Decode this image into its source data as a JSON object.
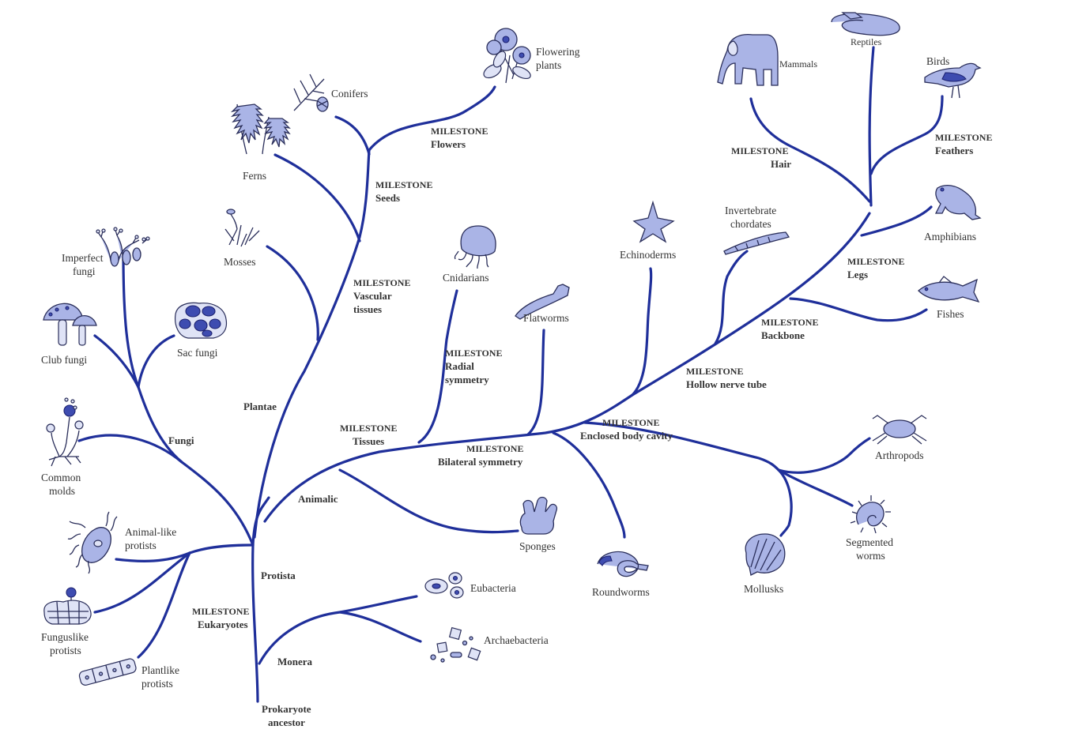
{
  "labels": {
    "flowering_plants": [
      "Flowering",
      "plants"
    ],
    "conifers": "Conifers",
    "ferns": "Ferns",
    "mosses": "Mosses",
    "imperfect_fungi": [
      "Imperfect",
      "fungi"
    ],
    "club_fungi": "Club fungi",
    "sac_fungi": "Sac fungi",
    "common_molds": [
      "Common",
      "molds"
    ],
    "animal_like_protists": [
      "Animal-like",
      "protists"
    ],
    "funguslike_protists": [
      "Funguslike",
      "protists"
    ],
    "plantlike_protists": [
      "Plantlike",
      "protists"
    ],
    "eubacteria": "Eubacteria",
    "archaebacteria": "Archaebacteria",
    "cnidarians": "Cnidarians",
    "flatworms": "Flatworms",
    "sponges": "Sponges",
    "roundworms": "Roundworms",
    "echinoderms": "Echinoderms",
    "invertebrate_chordates": [
      "Invertebrate",
      "chordates"
    ],
    "mammals": "Mammals",
    "reptiles": "Reptiles",
    "birds": "Birds",
    "amphibians": "Amphibians",
    "fishes": "Fishes",
    "arthropods": "Arthropods",
    "mollusks": "Mollusks",
    "segmented_worms": [
      "Segmented",
      "worms"
    ]
  },
  "groups": {
    "fungi": "Fungi",
    "plantae": "Plantae",
    "animalia": "Animalic",
    "protista": "Protista",
    "monera": "Monera",
    "ancestor": [
      "Prokaryote",
      "ancestor"
    ]
  },
  "milestones": {
    "flowers": [
      "MILESTONE",
      "Flowers"
    ],
    "seeds": [
      "MILESTONE",
      "Seeds"
    ],
    "vascular": [
      "MILESTONE",
      "Vascular",
      "tissues"
    ],
    "eukaryotes": [
      "MILESTONE",
      "Eukaryotes"
    ],
    "tissues": [
      "MILESTONE",
      "Tissues"
    ],
    "radial": [
      "MILESTONE",
      "Radial",
      "symmetry"
    ],
    "bilateral": [
      "MILESTONE",
      "Bilateral symmetry"
    ],
    "body_cavity": [
      "MILESTONE",
      "Enclosed body cavity"
    ],
    "nerve_tube": [
      "MILESTONE",
      "Hollow nerve tube"
    ],
    "backbone": [
      "MILESTONE",
      "Backbone"
    ],
    "legs": [
      "MILESTONE",
      "Legs"
    ],
    "hair": [
      "MILESTONE",
      "Hair"
    ],
    "feathers": [
      "MILESTONE",
      "Feathers"
    ]
  },
  "colors": {
    "branch": "#1f2f9a",
    "icon_fill": "#aab4e6",
    "icon_dark": "#3e4cb0",
    "text": "#333333"
  }
}
